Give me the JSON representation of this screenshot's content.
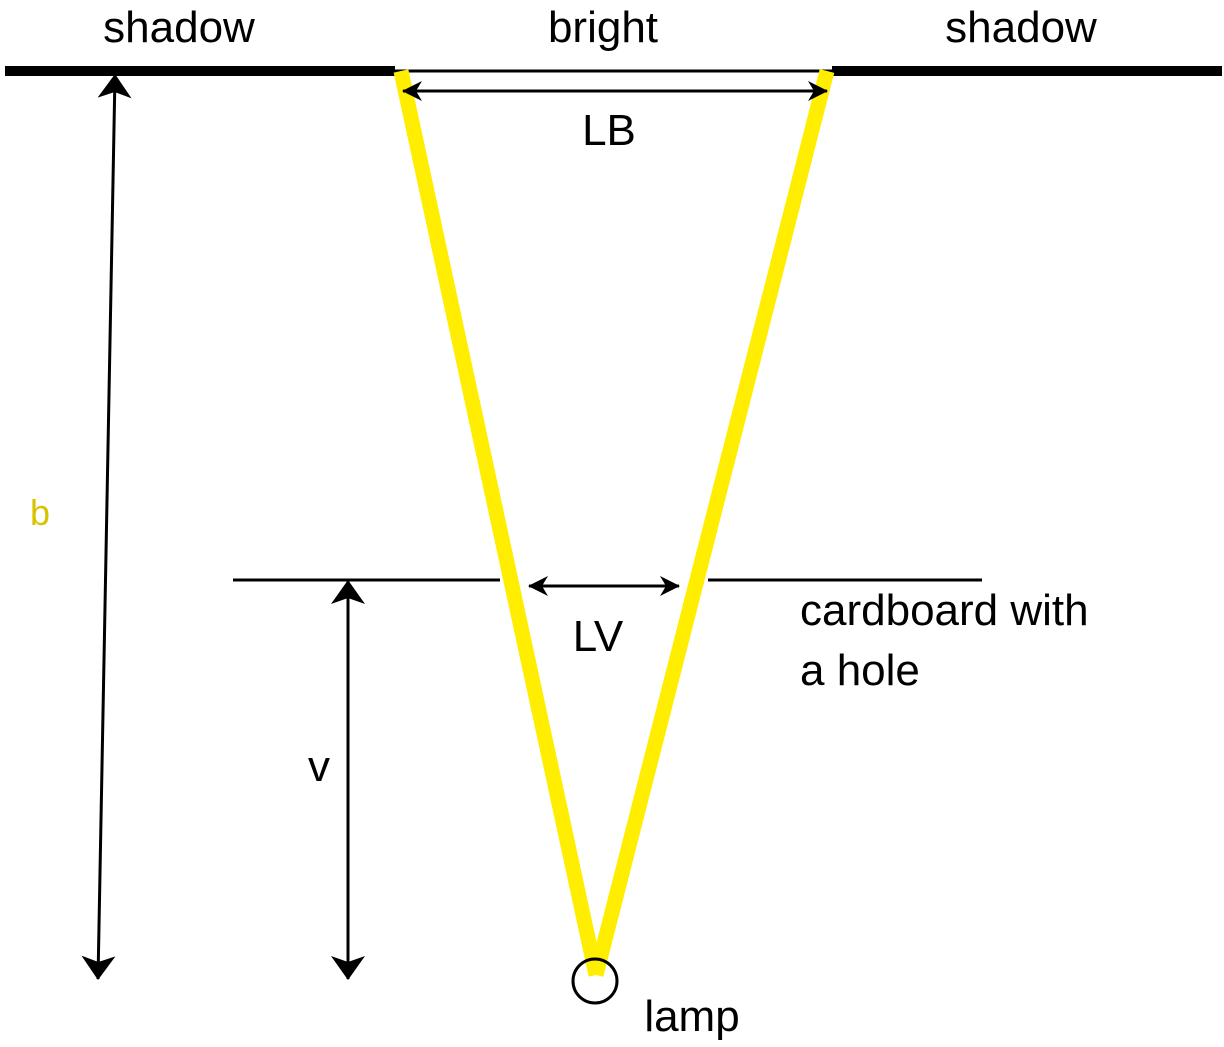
{
  "labels": {
    "shadow_left": "shadow",
    "bright": "bright",
    "shadow_right": "shadow",
    "lb": "LB",
    "b": "b",
    "lv": "LV",
    "cardboard_line1": "cardboard with",
    "cardboard_line2": "a hole",
    "v": "v",
    "lamp": "lamp"
  },
  "colors": {
    "light_ray": "#ffee00",
    "b_label": "#d9c300",
    "ink": "#000000"
  }
}
